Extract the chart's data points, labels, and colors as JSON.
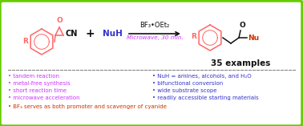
{
  "background_color": "#ffffff",
  "border_color": "#66cc00",
  "border_linewidth": 2.5,
  "reaction_arrow_text": "BF₃•OEt₂",
  "reaction_arrow_subtext": "Microwave, 30 min.",
  "examples_text": "35 examples",
  "bullet_left": [
    "• tandem reaction",
    "• metal-free synthesis",
    "• short reaction time",
    "• microwave acceleration",
    "• BF₃ serves as both promoter and scavenger of cyanide"
  ],
  "bullet_right": [
    "• NuH = amines, alcohols, and H₂O",
    "• bifunctional conversion",
    "• wide substrate scope",
    "• readily accessible starting materials"
  ],
  "color_purple": "#cc33ff",
  "color_blue": "#3333cc",
  "color_red": "#ff6666",
  "color_black": "#111111",
  "color_green_border": "#66cc00",
  "color_orange_red": "#cc3300",
  "color_dark_red": "#cc3300",
  "nuh_color": "#3333cc",
  "arrow_color": "#111111",
  "microwave_color": "#cc33ff",
  "figsize": [
    3.78,
    1.57
  ],
  "dpi": 100
}
